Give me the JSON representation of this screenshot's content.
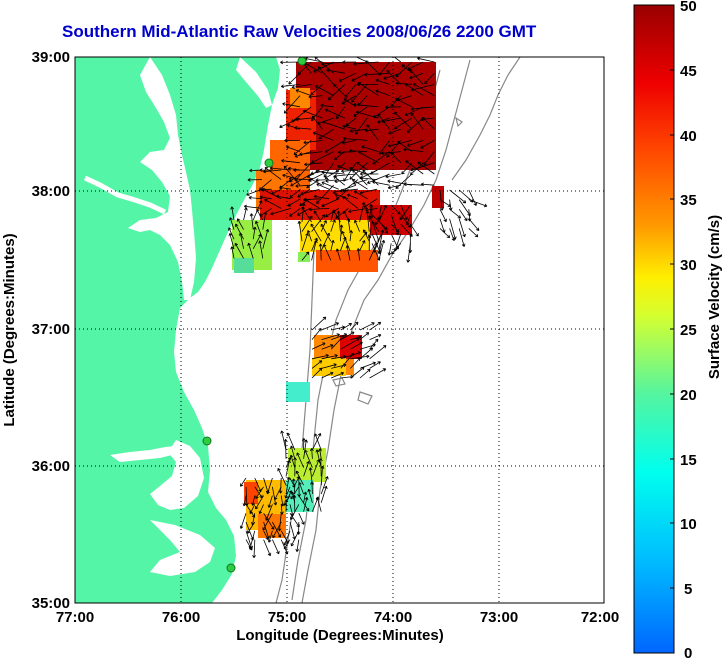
{
  "title": "Southern Mid-Atlantic Raw Velocities 2008/06/26 2200 GMT",
  "xaxis": {
    "label": "Longitude (Degrees:Minutes)",
    "ticks": [
      "77:00",
      "76:00",
      "75:00",
      "74:00",
      "73:00",
      "72:00"
    ]
  },
  "yaxis": {
    "label": "Latitude (Degrees:Minutes)",
    "ticks": [
      "39:00",
      "38:00",
      "37:00",
      "36:00",
      "35:00"
    ]
  },
  "colorbar": {
    "label": "Surface Velocity (cm/s)",
    "ticks": [
      "50",
      "45",
      "40",
      "35",
      "30",
      "25",
      "20",
      "15",
      "10",
      "5",
      "0"
    ],
    "range": [
      0,
      50
    ]
  },
  "colors": {
    "land": "#55f5a8",
    "water": "#ffffff",
    "title": "#0000cc",
    "station": "#2ecc40"
  },
  "chart_data": {
    "type": "heatmap",
    "title": "Southern Mid-Atlantic Raw Velocities 2008/06/26 2200 GMT",
    "xlabel": "Longitude (Degrees:Minutes)",
    "ylabel": "Latitude (Degrees:Minutes)",
    "xlim": [
      -77,
      -72
    ],
    "ylim": [
      35,
      39
    ],
    "colorbar_label": "Surface Velocity (cm/s)",
    "colorbar_range": [
      0,
      50
    ],
    "grid": true
  }
}
